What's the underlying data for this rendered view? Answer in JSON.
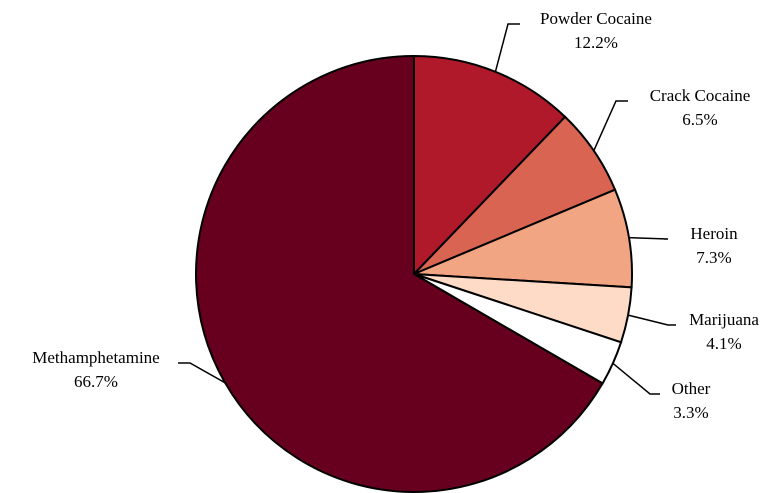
{
  "chart_data": {
    "type": "pie",
    "title": "",
    "start_angle": "12 o'clock",
    "direction": "clockwise",
    "slices": [
      {
        "label": "Powder Cocaine",
        "value": 12.2,
        "value_label": "12.2%",
        "color": "#B0192A"
      },
      {
        "label": "Crack Cocaine",
        "value": 6.5,
        "value_label": "6.5%",
        "color": "#D96451"
      },
      {
        "label": "Heroin",
        "value": 7.3,
        "value_label": "7.3%",
        "color": "#F2A583"
      },
      {
        "label": "Marijuana",
        "value": 4.1,
        "value_label": "4.1%",
        "color": "#FDDBC7"
      },
      {
        "label": "Other",
        "value": 3.3,
        "value_label": "3.3%",
        "color": "#FFFFFF"
      },
      {
        "label": "Methamphetamine",
        "value": 66.7,
        "value_label": "66.7%",
        "color": "#67001F"
      }
    ]
  }
}
